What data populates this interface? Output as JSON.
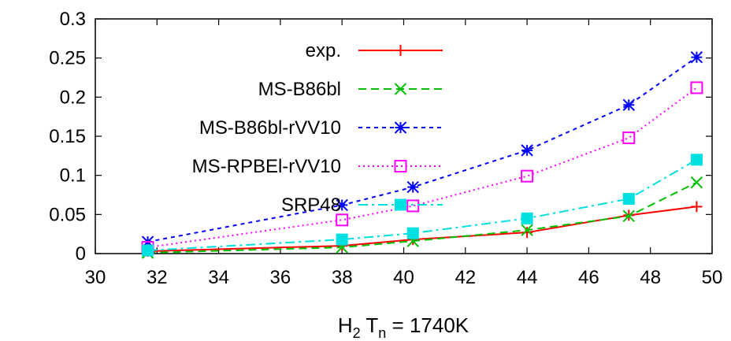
{
  "chart_data": {
    "type": "line",
    "title": "",
    "xlabel": {
      "base": "H",
      "sub1": "2",
      "mid": " T",
      "sub2": "n",
      "tail": " = 1740K"
    },
    "ylabel": "",
    "xlim": [
      30,
      50
    ],
    "ylim": [
      0,
      0.3
    ],
    "xticks": [
      "30",
      "32",
      "34",
      "36",
      "38",
      "40",
      "42",
      "44",
      "46",
      "48",
      "50"
    ],
    "yticks": [
      "0",
      "0.05",
      "0.1",
      "0.15",
      "0.2",
      "0.25",
      "0.3"
    ],
    "grid": false,
    "legend_position": "top-left",
    "x": [
      31.7,
      38.0,
      40.3,
      44.0,
      47.3,
      49.5
    ],
    "series": [
      {
        "name": "exp.",
        "color": "#ff0000",
        "dash": "solid",
        "marker": "plus",
        "values": [
          0.003,
          0.01,
          0.018,
          0.027,
          0.049,
          0.06
        ]
      },
      {
        "name": "MS-B86bl",
        "color": "#00c000",
        "dash": "dashed",
        "marker": "cross",
        "values": [
          0.001,
          0.008,
          0.016,
          0.03,
          0.048,
          0.091
        ]
      },
      {
        "name": "MS-B86bl-rVV10",
        "color": "#0000ff",
        "dash": "shortdash",
        "marker": "star",
        "values": [
          0.015,
          0.062,
          0.085,
          0.132,
          0.19,
          0.251
        ]
      },
      {
        "name": "MS-RPBEl-rVV10",
        "color": "#ff00ff",
        "dash": "dotted",
        "marker": "square-open",
        "values": [
          0.008,
          0.043,
          0.061,
          0.099,
          0.148,
          0.212
        ]
      },
      {
        "name": "SRP48",
        "color": "#00e0e0",
        "dash": "dashdot",
        "marker": "square-filled",
        "values": [
          0.004,
          0.018,
          0.026,
          0.045,
          0.07,
          0.12
        ]
      }
    ]
  }
}
